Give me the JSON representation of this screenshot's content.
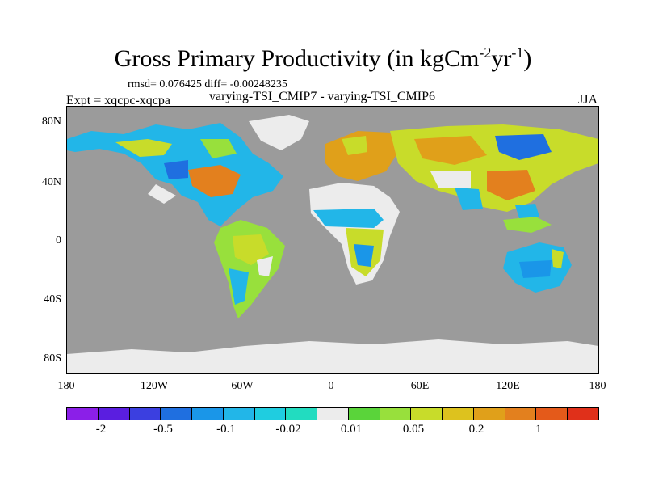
{
  "title": "Gross Primary Productivity (in kgCm",
  "title_exp1": "-2",
  "title_unit2": "yr",
  "title_exp2": "-1",
  "title_close": ")",
  "stats": "rmsd= 0.076425 diff= -0.00248235",
  "subtitle": "varying-TSI_CMIP7 - varying-TSI_CMIP6",
  "expt": "Expt = xqcpc-xqcpa",
  "season": "JJA",
  "lat_labels": [
    "80N",
    "40N",
    "0",
    "40S",
    "80S"
  ],
  "lon_labels": [
    "180",
    "120W",
    "60W",
    "0",
    "60E",
    "120E",
    "180"
  ],
  "colorbar": {
    "colors": [
      "#8b1fe8",
      "#5a1ee0",
      "#3b3fe0",
      "#1f6fe0",
      "#1a96e8",
      "#22b6e8",
      "#1fcde0",
      "#22dcc0",
      "#ececec",
      "#5ad43a",
      "#98e03c",
      "#c8dc2a",
      "#ddc21e",
      "#e0a01a",
      "#e3801e",
      "#e45a1a",
      "#e0301a"
    ],
    "labels": [
      "-2",
      "-0.5",
      "-0.1",
      "-0.02",
      "0.01",
      "0.05",
      "0.2",
      "1"
    ]
  },
  "map": {
    "ocean_color": "#9b9b9b",
    "land_neutral_color": "#ececec"
  }
}
